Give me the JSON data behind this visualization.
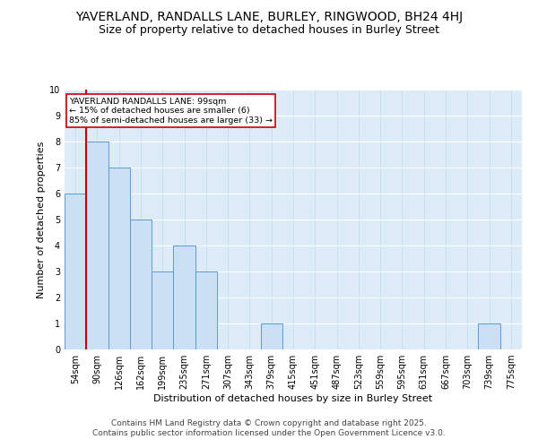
{
  "title1": "YAVERLAND, RANDALLS LANE, BURLEY, RINGWOOD, BH24 4HJ",
  "title2": "Size of property relative to detached houses in Burley Street",
  "xlabel": "Distribution of detached houses by size in Burley Street",
  "ylabel": "Number of detached properties",
  "categories": [
    "54sqm",
    "90sqm",
    "126sqm",
    "162sqm",
    "199sqm",
    "235sqm",
    "271sqm",
    "307sqm",
    "343sqm",
    "379sqm",
    "415sqm",
    "451sqm",
    "487sqm",
    "523sqm",
    "559sqm",
    "595sqm",
    "631sqm",
    "667sqm",
    "703sqm",
    "739sqm",
    "775sqm"
  ],
  "values": [
    6,
    8,
    7,
    5,
    3,
    4,
    3,
    0,
    0,
    1,
    0,
    0,
    0,
    0,
    0,
    0,
    0,
    0,
    0,
    1,
    0
  ],
  "bar_color": "#cce0f5",
  "bar_edge_color": "#5b9bd5",
  "vline_color": "#cc0000",
  "vline_index": 1,
  "annotation_text": "YAVERLAND RANDALLS LANE: 99sqm\n← 15% of detached houses are smaller (6)\n85% of semi-detached houses are larger (33) →",
  "annotation_box_color": "#ffffff",
  "annotation_box_edge": "#cc0000",
  "ylim": [
    0,
    10
  ],
  "yticks": [
    0,
    1,
    2,
    3,
    4,
    5,
    6,
    7,
    8,
    9,
    10
  ],
  "footer": "Contains HM Land Registry data © Crown copyright and database right 2025.\nContains public sector information licensed under the Open Government Licence v3.0.",
  "plot_bg": "#ddeaf8",
  "grid_color": "#c5d8ee",
  "title_fontsize": 10,
  "subtitle_fontsize": 9,
  "axis_label_fontsize": 8,
  "tick_fontsize": 7,
  "footer_fontsize": 6.5
}
